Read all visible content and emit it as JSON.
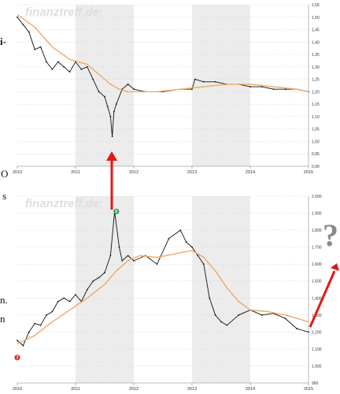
{
  "chart_data": [
    {
      "type": "line",
      "title": "",
      "watermark": "finanztreff.de:",
      "legend": [],
      "x_ticks": [
        "2010",
        "2011",
        "2012",
        "2013",
        "2014",
        "2015"
      ],
      "y_ticks": [
        "0,90",
        "0,95",
        "1,00",
        "1,05",
        "1,10",
        "1,15",
        "1,20",
        "1,25",
        "1,30",
        "1,35",
        "1,40",
        "1,45",
        "1,50",
        "1,55"
      ],
      "ylim": [
        0.9,
        1.55
      ],
      "shaded_years": [
        "2011",
        "2013"
      ],
      "grid": true,
      "series": [
        {
          "role": "price",
          "color": "#111111",
          "x": [
            2010.0,
            2010.1,
            2010.2,
            2010.3,
            2010.4,
            2010.5,
            2010.6,
            2010.7,
            2010.8,
            2010.9,
            2011.0,
            2011.1,
            2011.2,
            2011.3,
            2011.4,
            2011.5,
            2011.55,
            2011.6,
            2011.63,
            2011.66,
            2011.7,
            2011.8,
            2011.9,
            2012.0,
            2012.2,
            2012.5,
            2012.8,
            2013.0,
            2013.05,
            2013.2,
            2013.4,
            2013.6,
            2013.8,
            2014.0,
            2014.2,
            2014.4,
            2014.6,
            2014.8,
            2015.0
          ],
          "y": [
            1.5,
            1.47,
            1.44,
            1.37,
            1.38,
            1.32,
            1.29,
            1.32,
            1.3,
            1.28,
            1.32,
            1.29,
            1.3,
            1.25,
            1.2,
            1.18,
            1.14,
            1.1,
            1.02,
            1.12,
            1.15,
            1.21,
            1.23,
            1.21,
            1.2,
            1.2,
            1.21,
            1.21,
            1.25,
            1.24,
            1.24,
            1.23,
            1.23,
            1.22,
            1.22,
            1.21,
            1.21,
            1.21,
            1.2
          ]
        },
        {
          "role": "average",
          "color": "#f0a868",
          "x": [
            2010.0,
            2010.3,
            2010.6,
            2010.9,
            2011.2,
            2011.4,
            2011.6,
            2011.75,
            2011.9,
            2012.1,
            2012.4,
            2012.8,
            2013.2,
            2013.6,
            2014.0,
            2014.4,
            2014.8,
            2015.0
          ],
          "y": [
            1.51,
            1.46,
            1.38,
            1.33,
            1.31,
            1.27,
            1.23,
            1.21,
            1.2,
            1.2,
            1.2,
            1.21,
            1.22,
            1.23,
            1.23,
            1.22,
            1.21,
            1.2
          ]
        }
      ]
    },
    {
      "type": "line",
      "title": "",
      "watermark": "finanztreff.de:",
      "legend": [],
      "x_ticks": [
        "2010",
        "2011",
        "2012",
        "2013",
        "2014",
        "2015"
      ],
      "y_ticks": [
        "900",
        "1.000",
        "1.100",
        "1.200",
        "1.300",
        "1.400",
        "1.500",
        "1.600",
        "1.700",
        "1.800",
        "1.900",
        "2.000"
      ],
      "ylim": [
        900,
        2000
      ],
      "shaded_years": [
        "2011",
        "2013"
      ],
      "grid": true,
      "markers": [
        {
          "label": "0",
          "x": 2011.7,
          "y": 1910,
          "color": "#2e9a3b"
        },
        {
          "label": "7",
          "x": 2010.0,
          "y": 1050,
          "color": "#d43030"
        }
      ],
      "series": [
        {
          "role": "price",
          "color": "#111111",
          "x": [
            2010.0,
            2010.1,
            2010.2,
            2010.3,
            2010.4,
            2010.5,
            2010.6,
            2010.7,
            2010.8,
            2010.9,
            2011.0,
            2011.1,
            2011.2,
            2011.3,
            2011.4,
            2011.5,
            2011.6,
            2011.67,
            2011.75,
            2011.8,
            2011.9,
            2012.0,
            2012.2,
            2012.4,
            2012.6,
            2012.8,
            2012.9,
            2013.0,
            2013.1,
            2013.2,
            2013.3,
            2013.4,
            2013.5,
            2013.6,
            2013.8,
            2014.0,
            2014.2,
            2014.4,
            2014.6,
            2014.8,
            2015.0
          ],
          "y": [
            1150,
            1120,
            1200,
            1250,
            1240,
            1300,
            1320,
            1380,
            1400,
            1380,
            1420,
            1380,
            1450,
            1500,
            1520,
            1550,
            1650,
            1910,
            1700,
            1620,
            1650,
            1620,
            1650,
            1600,
            1750,
            1800,
            1730,
            1700,
            1650,
            1600,
            1400,
            1300,
            1260,
            1240,
            1300,
            1330,
            1300,
            1310,
            1280,
            1220,
            1200
          ]
        },
        {
          "role": "average",
          "color": "#f0a868",
          "x": [
            2010.0,
            2010.3,
            2010.6,
            2010.9,
            2011.2,
            2011.5,
            2011.7,
            2011.9,
            2012.1,
            2012.4,
            2012.7,
            2013.0,
            2013.2,
            2013.4,
            2013.6,
            2013.8,
            2014.0,
            2014.3,
            2014.6,
            2014.8,
            2015.0
          ],
          "y": [
            1130,
            1180,
            1260,
            1330,
            1400,
            1480,
            1560,
            1620,
            1650,
            1640,
            1660,
            1680,
            1640,
            1560,
            1460,
            1380,
            1330,
            1320,
            1300,
            1280,
            1260
          ]
        }
      ]
    }
  ],
  "annotations": {
    "question_mark": "?"
  },
  "fragments": [
    {
      "text": "i-",
      "bold": true
    },
    {
      "text": "O",
      "bold": false
    },
    {
      "text": "s",
      "bold": false
    },
    {
      "text": "n.",
      "bold": false
    },
    {
      "text": "n",
      "bold": false
    }
  ]
}
